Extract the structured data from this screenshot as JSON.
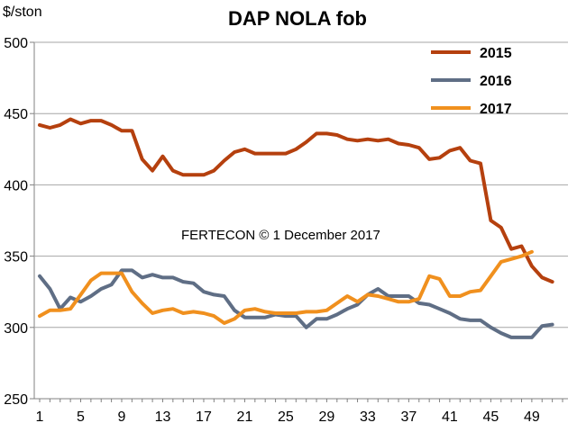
{
  "chart_data": {
    "type": "line",
    "title": "DAP NOLA fob",
    "ylabel": "$/ston",
    "xlabel": "",
    "annotation": "FERTECON © 1 December 2017",
    "ylim": [
      250,
      500
    ],
    "xlim": [
      1,
      52
    ],
    "yticks": [
      250,
      300,
      350,
      400,
      450,
      500
    ],
    "xticks": [
      1,
      5,
      9,
      13,
      17,
      21,
      25,
      29,
      33,
      37,
      41,
      45,
      49
    ],
    "legend_position": "top-right",
    "series": [
      {
        "name": "2015",
        "color": "#B5400E",
        "x": [
          1,
          2,
          3,
          4,
          5,
          6,
          7,
          8,
          9,
          10,
          11,
          12,
          13,
          14,
          15,
          16,
          17,
          18,
          19,
          20,
          21,
          22,
          23,
          24,
          25,
          26,
          27,
          28,
          29,
          30,
          31,
          32,
          33,
          34,
          35,
          36,
          37,
          38,
          39,
          40,
          41,
          42,
          43,
          44,
          45,
          46,
          47,
          48,
          49,
          50,
          51
        ],
        "values": [
          442,
          440,
          442,
          446,
          443,
          445,
          445,
          442,
          438,
          438,
          418,
          410,
          420,
          410,
          407,
          407,
          407,
          410,
          417,
          423,
          425,
          422,
          422,
          422,
          422,
          425,
          430,
          436,
          436,
          435,
          432,
          431,
          432,
          431,
          432,
          429,
          428,
          426,
          418,
          419,
          424,
          426,
          417,
          415,
          375,
          370,
          355,
          357,
          343,
          335,
          332
        ]
      },
      {
        "name": "2016",
        "color": "#5F6E85",
        "x": [
          1,
          2,
          3,
          4,
          5,
          6,
          7,
          8,
          9,
          10,
          11,
          12,
          13,
          14,
          15,
          16,
          17,
          18,
          19,
          20,
          21,
          22,
          23,
          24,
          25,
          26,
          27,
          28,
          29,
          30,
          31,
          32,
          33,
          34,
          35,
          36,
          37,
          38,
          39,
          40,
          41,
          42,
          43,
          44,
          45,
          46,
          47,
          48,
          49,
          50,
          51
        ],
        "values": [
          336,
          327,
          313,
          321,
          318,
          322,
          327,
          330,
          340,
          340,
          335,
          337,
          335,
          335,
          332,
          331,
          325,
          323,
          322,
          312,
          307,
          307,
          307,
          309,
          308,
          308,
          300,
          306,
          306,
          309,
          313,
          316,
          323,
          327,
          322,
          322,
          322,
          317,
          316,
          313,
          310,
          306,
          305,
          305,
          300,
          296,
          293,
          293,
          293,
          301,
          302
        ]
      },
      {
        "name": "2017",
        "color": "#F0901E",
        "x": [
          1,
          2,
          3,
          4,
          5,
          6,
          7,
          8,
          9,
          10,
          11,
          12,
          13,
          14,
          15,
          16,
          17,
          18,
          19,
          20,
          21,
          22,
          23,
          24,
          25,
          26,
          27,
          28,
          29,
          30,
          31,
          32,
          33,
          34,
          35,
          36,
          37,
          38,
          39,
          40,
          41,
          42,
          43,
          44,
          45,
          46,
          47,
          48,
          49
        ],
        "values": [
          308,
          312,
          312,
          313,
          323,
          333,
          338,
          338,
          338,
          325,
          317,
          310,
          312,
          313,
          310,
          311,
          310,
          308,
          303,
          306,
          312,
          313,
          311,
          310,
          310,
          310,
          311,
          311,
          312,
          317,
          322,
          318,
          323,
          322,
          320,
          318,
          318,
          320,
          336,
          334,
          322,
          322,
          325,
          326,
          336,
          346,
          348,
          350,
          353
        ]
      }
    ]
  }
}
